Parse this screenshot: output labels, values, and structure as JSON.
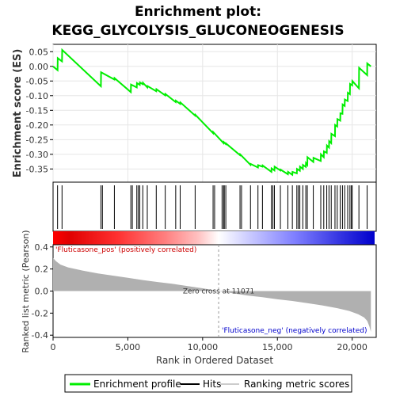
{
  "chart_data": {
    "type": "line",
    "title_line1": "Enrichment plot:",
    "title_line2": "KEGG_GLYCOLYSIS_GLUCONEOGENESIS",
    "ylabel_top": "Enrichment score (ES)",
    "ylabel_bottom": "Ranked list metric (Pearson)",
    "xlabel": "Rank in Ordered Dataset",
    "xlim": [
      0,
      21500
    ],
    "xticks": [
      0,
      5000,
      10000,
      15000,
      20000
    ],
    "xtick_labels": [
      "0",
      "5,000",
      "10,000",
      "15,000",
      "20,000"
    ],
    "es_ylim": [
      -0.395,
      0.075
    ],
    "es_yticks": [
      0.05,
      0.0,
      -0.05,
      -0.1,
      -0.15,
      -0.2,
      -0.25,
      -0.3,
      -0.35
    ],
    "es_ytick_labels": [
      "0.05",
      "0.00",
      "-0.05",
      "-0.10",
      "-0.15",
      "-0.20",
      "-0.25",
      "-0.30",
      "-0.35"
    ],
    "metric_ylim": [
      -0.42,
      0.42
    ],
    "metric_yticks": [
      0.4,
      0.2,
      0.0,
      -0.2,
      -0.4
    ],
    "metric_ytick_labels": [
      "0.4",
      "0.2",
      "0.0",
      "-0.2",
      "-0.4"
    ],
    "es_color": "#00ee00",
    "es_curve": {
      "x": [
        0,
        300,
        310,
        600,
        610,
        3200,
        3210,
        4100,
        4110,
        5200,
        5210,
        5600,
        5610,
        5800,
        5810,
        6000,
        6010,
        6300,
        6310,
        6900,
        6910,
        7500,
        7510,
        8200,
        8210,
        8500,
        8510,
        9500,
        9510,
        10700,
        10710,
        11400,
        11410,
        11550,
        11560,
        12500,
        12510,
        13200,
        13210,
        13700,
        13710,
        14000,
        14010,
        14600,
        14610,
        14800,
        14810,
        15200,
        15210,
        15700,
        15710,
        16000,
        16010,
        16300,
        16310,
        16500,
        16510,
        16700,
        16710,
        16900,
        16910,
        17000,
        17010,
        17400,
        17410,
        17900,
        17910,
        18100,
        18110,
        18300,
        18310,
        18450,
        18460,
        18600,
        18610,
        18850,
        18860,
        19000,
        19010,
        19200,
        19210,
        19350,
        19360,
        19500,
        19510,
        19700,
        19710,
        19850,
        19860,
        20000,
        20010,
        20450,
        20460,
        21000,
        21010,
        21250
      ],
      "y": [
        0.0,
        -0.013,
        0.028,
        0.017,
        0.056,
        -0.068,
        -0.02,
        -0.045,
        -0.04,
        -0.088,
        -0.062,
        -0.072,
        -0.057,
        -0.063,
        -0.055,
        -0.061,
        -0.056,
        -0.072,
        -0.067,
        -0.085,
        -0.078,
        -0.099,
        -0.094,
        -0.122,
        -0.117,
        -0.128,
        -0.123,
        -0.168,
        -0.165,
        -0.228,
        -0.224,
        -0.262,
        -0.258,
        -0.265,
        -0.263,
        -0.303,
        -0.3,
        -0.336,
        -0.333,
        -0.345,
        -0.337,
        -0.342,
        -0.338,
        -0.36,
        -0.348,
        -0.355,
        -0.342,
        -0.355,
        -0.352,
        -0.368,
        -0.36,
        -0.37,
        -0.36,
        -0.365,
        -0.35,
        -0.356,
        -0.342,
        -0.35,
        -0.336,
        -0.343,
        -0.33,
        -0.336,
        -0.31,
        -0.326,
        -0.312,
        -0.323,
        -0.3,
        -0.31,
        -0.29,
        -0.295,
        -0.27,
        -0.277,
        -0.255,
        -0.262,
        -0.23,
        -0.238,
        -0.2,
        -0.205,
        -0.18,
        -0.185,
        -0.16,
        -0.162,
        -0.13,
        -0.135,
        -0.113,
        -0.118,
        -0.09,
        -0.095,
        -0.06,
        -0.065,
        -0.05,
        -0.075,
        -0.005,
        -0.03,
        0.01,
        0.0
      ]
    },
    "hit_positions": [
      300,
      600,
      3200,
      3300,
      4100,
      5200,
      5300,
      5600,
      5700,
      5800,
      6000,
      6300,
      6900,
      7500,
      8200,
      8500,
      9500,
      10700,
      10800,
      11300,
      11400,
      11450,
      11550,
      12500,
      12600,
      13200,
      13700,
      14000,
      14600,
      14700,
      14800,
      15200,
      15700,
      16000,
      16300,
      16400,
      16500,
      16700,
      16900,
      17000,
      17400,
      17900,
      18100,
      18300,
      18450,
      18600,
      18850,
      19000,
      19200,
      19350,
      19500,
      19700,
      19850,
      19950,
      20000,
      20450,
      21000
    ],
    "zero_cross_rank": 11071,
    "zero_cross_label": "Zero cross at 11071",
    "pos_label": "'Fluticasone_pos' (positively correlated)",
    "neg_label": "'Fluticasone_neg' (negatively correlated)",
    "pos_label_color": "#cc0000",
    "neg_label_color": "#0000cc",
    "metric_curve": {
      "x": [
        0,
        200,
        500,
        1000,
        2000,
        3000,
        4000,
        5000,
        6000,
        7000,
        8000,
        9000,
        10000,
        11071,
        12000,
        13000,
        14000,
        15000,
        16000,
        17000,
        18000,
        19000,
        19800,
        20400,
        20800,
        21000,
        21150,
        21250
      ],
      "y": [
        0.3,
        0.27,
        0.24,
        0.215,
        0.185,
        0.16,
        0.14,
        0.12,
        0.1,
        0.082,
        0.065,
        0.045,
        0.025,
        0.0,
        -0.02,
        -0.04,
        -0.055,
        -0.075,
        -0.09,
        -0.11,
        -0.13,
        -0.155,
        -0.18,
        -0.21,
        -0.24,
        -0.27,
        -0.32,
        -0.37
      ]
    },
    "metric_fill_color": "#b0b0b0",
    "legend": {
      "items": [
        {
          "label": "Enrichment profile",
          "color": "#00ee00"
        },
        {
          "label": "Hits",
          "color": "#000000"
        },
        {
          "label": "Ranking metric scores",
          "color": "#cccccc"
        }
      ]
    }
  }
}
